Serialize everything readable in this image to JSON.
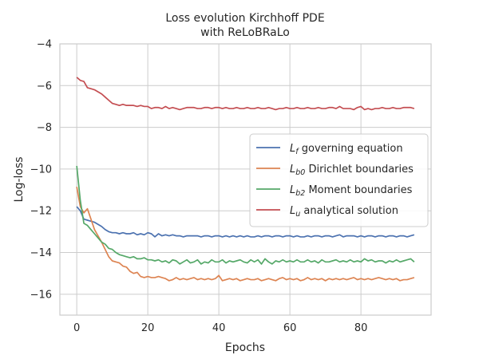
{
  "chart_data": {
    "type": "line",
    "title_lines": [
      "Loss evolution Kirchhoff PDE",
      "with ReLoBRaLo"
    ],
    "xlabel": "Epochs",
    "ylabel": "Log-loss",
    "xlim": [
      -4.75,
      99.75
    ],
    "ylim": [
      -17,
      -4
    ],
    "xticks": [
      0,
      20,
      40,
      60,
      80
    ],
    "yticks": [
      -16,
      -14,
      -12,
      -10,
      -8,
      -6,
      -4
    ],
    "grid": true,
    "legend_position": "center-right",
    "x": [
      0,
      1,
      2,
      3,
      4,
      5,
      6,
      7,
      8,
      9,
      10,
      11,
      12,
      13,
      14,
      15,
      16,
      17,
      18,
      19,
      20,
      21,
      22,
      23,
      24,
      25,
      26,
      27,
      28,
      29,
      30,
      31,
      32,
      33,
      34,
      35,
      36,
      37,
      38,
      39,
      40,
      41,
      42,
      43,
      44,
      45,
      46,
      47,
      48,
      49,
      50,
      51,
      52,
      53,
      54,
      55,
      56,
      57,
      58,
      59,
      60,
      61,
      62,
      63,
      64,
      65,
      66,
      67,
      68,
      69,
      70,
      71,
      72,
      73,
      74,
      75,
      76,
      77,
      78,
      79,
      80,
      81,
      82,
      83,
      84,
      85,
      86,
      87,
      88,
      89,
      90,
      91,
      92,
      93,
      94,
      95
    ],
    "series": [
      {
        "legend": {
          "main": "L",
          "sub": "f",
          "rest": " governing equation"
        },
        "color": "#4c72b0",
        "values": [
          -11.8,
          -12.0,
          -12.4,
          -12.45,
          -12.5,
          -12.55,
          -12.65,
          -12.75,
          -12.9,
          -13.0,
          -13.05,
          -13.05,
          -13.1,
          -13.05,
          -13.1,
          -13.1,
          -13.05,
          -13.15,
          -13.1,
          -13.15,
          -13.05,
          -13.1,
          -13.25,
          -13.1,
          -13.2,
          -13.15,
          -13.2,
          -13.15,
          -13.2,
          -13.2,
          -13.25,
          -13.2,
          -13.2,
          -13.2,
          -13.2,
          -13.25,
          -13.2,
          -13.2,
          -13.25,
          -13.2,
          -13.2,
          -13.25,
          -13.2,
          -13.25,
          -13.2,
          -13.25,
          -13.2,
          -13.25,
          -13.2,
          -13.25,
          -13.25,
          -13.2,
          -13.25,
          -13.2,
          -13.2,
          -13.25,
          -13.2,
          -13.2,
          -13.25,
          -13.2,
          -13.2,
          -13.25,
          -13.2,
          -13.25,
          -13.25,
          -13.2,
          -13.25,
          -13.2,
          -13.2,
          -13.25,
          -13.2,
          -13.2,
          -13.25,
          -13.2,
          -13.15,
          -13.25,
          -13.2,
          -13.2,
          -13.2,
          -13.25,
          -13.2,
          -13.25,
          -13.2,
          -13.2,
          -13.25,
          -13.2,
          -13.2,
          -13.25,
          -13.2,
          -13.2,
          -13.25,
          -13.2,
          -13.2,
          -13.25,
          -13.2,
          -13.15
        ]
      },
      {
        "legend": {
          "main": "L",
          "sub": "b0",
          "rest": " Dirichlet boundaries"
        },
        "color": "#dd8452",
        "values": [
          -10.85,
          -11.8,
          -12.1,
          -11.9,
          -12.4,
          -12.9,
          -13.2,
          -13.5,
          -13.85,
          -14.2,
          -14.4,
          -14.45,
          -14.5,
          -14.65,
          -14.7,
          -14.9,
          -15.0,
          -14.95,
          -15.15,
          -15.2,
          -15.15,
          -15.2,
          -15.2,
          -15.15,
          -15.2,
          -15.25,
          -15.35,
          -15.3,
          -15.2,
          -15.3,
          -15.25,
          -15.3,
          -15.25,
          -15.2,
          -15.3,
          -15.25,
          -15.3,
          -15.25,
          -15.3,
          -15.25,
          -15.1,
          -15.35,
          -15.3,
          -15.25,
          -15.3,
          -15.25,
          -15.35,
          -15.3,
          -15.25,
          -15.3,
          -15.3,
          -15.25,
          -15.35,
          -15.3,
          -15.25,
          -15.3,
          -15.35,
          -15.25,
          -15.2,
          -15.3,
          -15.25,
          -15.3,
          -15.25,
          -15.35,
          -15.3,
          -15.2,
          -15.3,
          -15.25,
          -15.3,
          -15.25,
          -15.35,
          -15.25,
          -15.3,
          -15.25,
          -15.3,
          -15.25,
          -15.3,
          -15.25,
          -15.2,
          -15.3,
          -15.25,
          -15.3,
          -15.25,
          -15.3,
          -15.25,
          -15.2,
          -15.25,
          -15.3,
          -15.25,
          -15.3,
          -15.25,
          -15.35,
          -15.3,
          -15.3,
          -15.25,
          -15.2
        ]
      },
      {
        "legend": {
          "main": "L",
          "sub": "b2",
          "rest": " Moment boundaries"
        },
        "color": "#55a868",
        "values": [
          -9.85,
          -11.5,
          -12.6,
          -12.7,
          -12.9,
          -13.1,
          -13.3,
          -13.5,
          -13.6,
          -13.8,
          -13.85,
          -14.0,
          -14.1,
          -14.15,
          -14.2,
          -14.25,
          -14.2,
          -14.3,
          -14.3,
          -14.25,
          -14.35,
          -14.35,
          -14.4,
          -14.35,
          -14.45,
          -14.4,
          -14.5,
          -14.35,
          -14.4,
          -14.55,
          -14.45,
          -14.35,
          -14.5,
          -14.45,
          -14.35,
          -14.55,
          -14.45,
          -14.5,
          -14.35,
          -14.45,
          -14.45,
          -14.35,
          -14.5,
          -14.4,
          -14.45,
          -14.4,
          -14.35,
          -14.45,
          -14.5,
          -14.35,
          -14.45,
          -14.35,
          -14.55,
          -14.3,
          -14.45,
          -14.55,
          -14.4,
          -14.45,
          -14.35,
          -14.45,
          -14.4,
          -14.45,
          -14.35,
          -14.45,
          -14.45,
          -14.35,
          -14.45,
          -14.4,
          -14.5,
          -14.35,
          -14.45,
          -14.45,
          -14.4,
          -14.35,
          -14.45,
          -14.4,
          -14.45,
          -14.35,
          -14.45,
          -14.4,
          -14.45,
          -14.3,
          -14.4,
          -14.35,
          -14.45,
          -14.4,
          -14.4,
          -14.5,
          -14.4,
          -14.45,
          -14.35,
          -14.45,
          -14.4,
          -14.35,
          -14.3,
          -14.45
        ]
      },
      {
        "legend": {
          "main": "L",
          "sub": "u",
          "rest": " analytical solution"
        },
        "color": "#c44e52",
        "values": [
          -5.6,
          -5.75,
          -5.8,
          -6.1,
          -6.15,
          -6.2,
          -6.3,
          -6.4,
          -6.55,
          -6.7,
          -6.85,
          -6.9,
          -6.95,
          -6.9,
          -6.95,
          -6.95,
          -6.95,
          -7.0,
          -6.95,
          -7.0,
          -7.0,
          -7.1,
          -7.05,
          -7.05,
          -7.1,
          -7.0,
          -7.1,
          -7.05,
          -7.1,
          -7.15,
          -7.1,
          -7.05,
          -7.05,
          -7.05,
          -7.1,
          -7.1,
          -7.05,
          -7.05,
          -7.1,
          -7.05,
          -7.05,
          -7.1,
          -7.05,
          -7.1,
          -7.1,
          -7.05,
          -7.1,
          -7.1,
          -7.05,
          -7.1,
          -7.1,
          -7.05,
          -7.1,
          -7.1,
          -7.05,
          -7.1,
          -7.15,
          -7.1,
          -7.1,
          -7.05,
          -7.1,
          -7.1,
          -7.05,
          -7.1,
          -7.1,
          -7.05,
          -7.1,
          -7.1,
          -7.05,
          -7.1,
          -7.1,
          -7.05,
          -7.05,
          -7.1,
          -7.0,
          -7.1,
          -7.1,
          -7.1,
          -7.15,
          -7.05,
          -7.0,
          -7.15,
          -7.1,
          -7.15,
          -7.1,
          -7.1,
          -7.05,
          -7.1,
          -7.1,
          -7.05,
          -7.1,
          -7.1,
          -7.05,
          -7.05,
          -7.05,
          -7.1
        ]
      }
    ]
  }
}
